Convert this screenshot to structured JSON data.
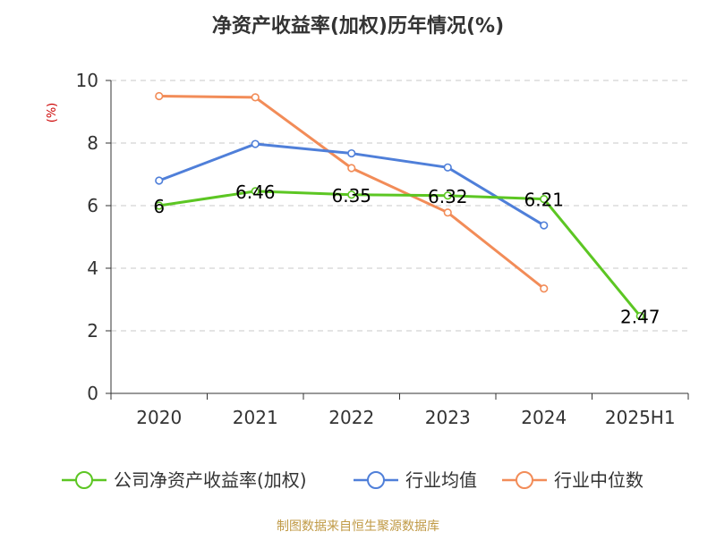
{
  "colors": {
    "company": "#5cc623",
    "industry_avg": "#4f7fd9",
    "industry_median": "#f28c58",
    "grid": "#c8c8c8",
    "axis": "#333333",
    "title": "#333333",
    "unit": "#cc0000",
    "source": "#c09a46"
  },
  "chart_data": {
    "type": "line",
    "title": "净资产收益率(加权)历年情况(%)",
    "ylabel": "(%)",
    "xlabel": "",
    "categories": [
      "2020",
      "2021",
      "2022",
      "2023",
      "2024",
      "2025H1"
    ],
    "ylim": [
      0,
      10
    ],
    "yticks": [
      0,
      2,
      4,
      6,
      8,
      10
    ],
    "grid": true,
    "legend_position": "bottom",
    "series": [
      {
        "name": "公司净资产收益率(加权)",
        "values": [
          6,
          6.46,
          6.35,
          6.32,
          6.21,
          2.47
        ],
        "labels": [
          "6",
          "6.46",
          "6.35",
          "6.32",
          "6.21",
          "2.47"
        ],
        "color": "#5cc623"
      },
      {
        "name": "行业均值",
        "values": [
          6.8,
          7.97,
          7.67,
          7.22,
          5.37,
          null
        ],
        "color": "#4f7fd9"
      },
      {
        "name": "行业中位数",
        "values": [
          9.5,
          9.46,
          7.2,
          5.78,
          3.35,
          null
        ],
        "color": "#f28c58"
      }
    ]
  },
  "source_text": "制图数据来自恒生聚源数据库"
}
